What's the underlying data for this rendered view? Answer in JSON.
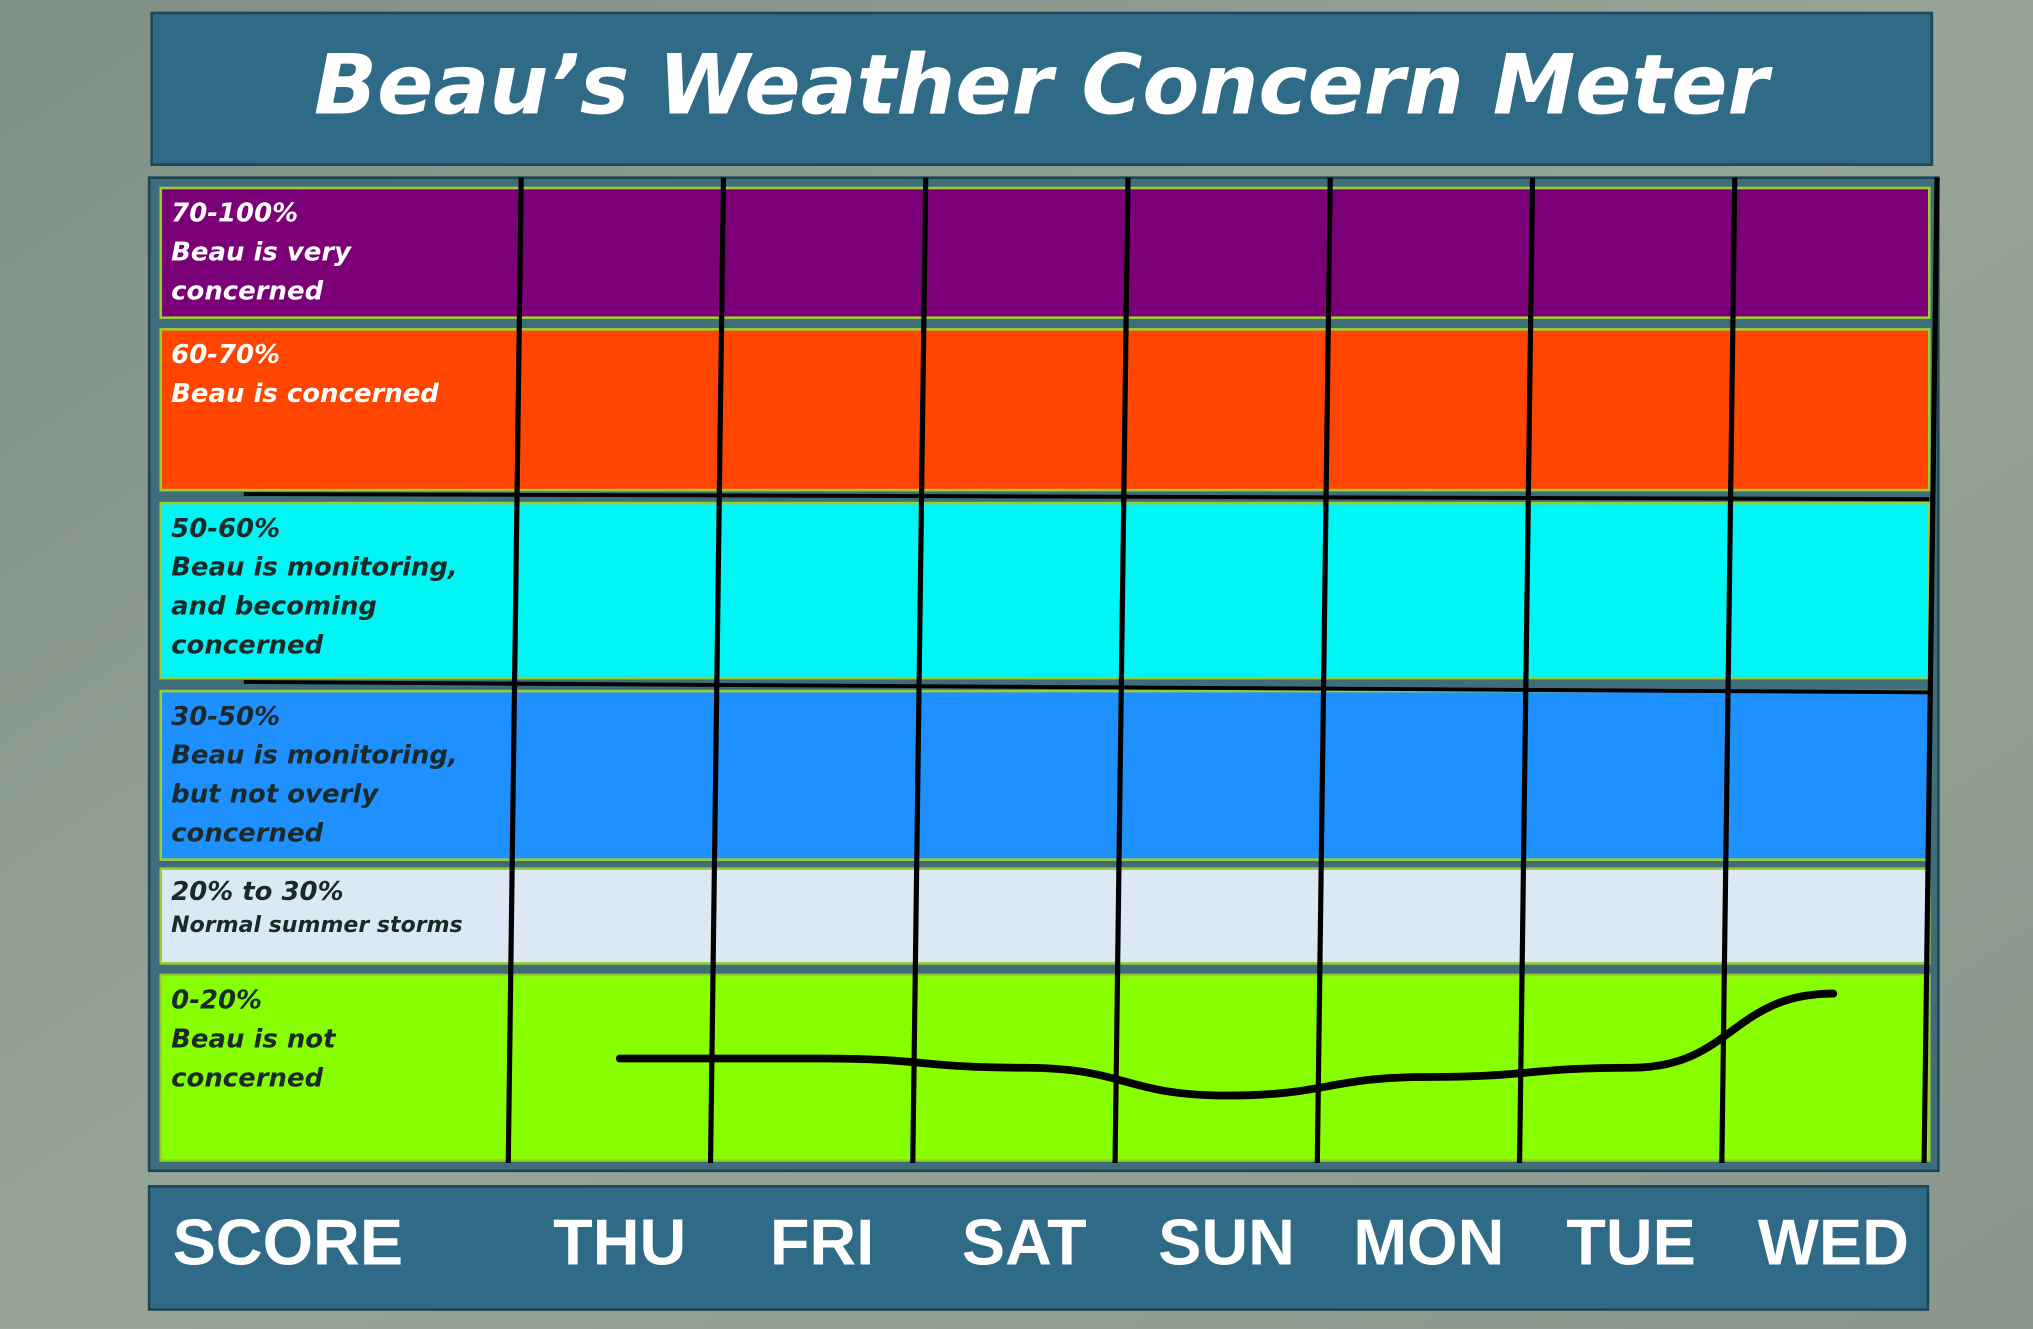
{
  "chart_data": {
    "type": "line",
    "title": "Beau’s Weather Concern Meter",
    "score_label": "SCORE",
    "categories": [
      "THU",
      "FRI",
      "SAT",
      "SUN",
      "MON",
      "TUE",
      "WED"
    ],
    "bands": [
      {
        "range": "70-100%",
        "label": "Beau is very concerned",
        "min": 70,
        "max": 100,
        "color": "#7b0078",
        "text_color": "#ffffff"
      },
      {
        "range": "60-70%",
        "label": "Beau is concerned",
        "min": 60,
        "max": 70,
        "color": "#ff4500",
        "text_color": "#ffffff"
      },
      {
        "range": "50-60%",
        "label": "Beau is monitoring, and becoming concerned",
        "min": 50,
        "max": 60,
        "color": "#00f5f5",
        "text_color": "#1a2a2a"
      },
      {
        "range": "30-50%",
        "label": "Beau is monitoring, but not overly concerned",
        "min": 30,
        "max": 50,
        "color": "#1e90ff",
        "text_color": "#1a2a2a"
      },
      {
        "range": "20% to 30%",
        "label": "Normal summer storms",
        "min": 20,
        "max": 30,
        "color": "#dde8f5",
        "text_color": "#1a2a2a"
      },
      {
        "range": "0-20%",
        "label": "Beau is not concerned",
        "min": 0,
        "max": 20,
        "color": "#88ff00",
        "text_color": "#1a2a2a"
      }
    ],
    "values": [
      11,
      11,
      10,
      7,
      9,
      10,
      18
    ],
    "color": "#000000"
  }
}
